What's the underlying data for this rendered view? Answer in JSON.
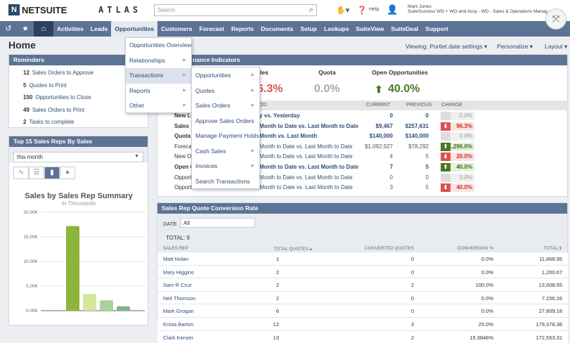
{
  "header": {
    "brand": "NETSUITE",
    "atlas": "ATLAS",
    "search_placeholder": "Search",
    "help": "Help",
    "user_name": "Mark Jones",
    "user_role": "SuiteSuccess WD + WO and Assy - WD - Sales & Operations Manag"
  },
  "nav": [
    "Activities",
    "Leads",
    "Opportunities",
    "Customers",
    "Forecast",
    "Reports",
    "Documents",
    "Setup",
    "Lookups",
    "SuiteView",
    "SuiteDeal",
    "Support"
  ],
  "page": {
    "title": "Home",
    "viewing": "Viewing: Portlet date settings",
    "personalize": "Personalize",
    "layout": "Layout"
  },
  "reminders": {
    "title": "Reminders",
    "items": [
      {
        "count": "12",
        "label": "Sales Orders to Approve"
      },
      {
        "count": "5",
        "label": "Quotes to Print"
      },
      {
        "count": "150",
        "label": "Opportunities to Close"
      },
      {
        "count": "49",
        "label": "Sales Orders to Print"
      },
      {
        "count": "2",
        "label": "Tasks to complete"
      }
    ]
  },
  "top15": {
    "title": "Top 15 Sales Reps By Sales",
    "period": "this month"
  },
  "chart_data": {
    "type": "bar",
    "title": "Sales by Sales Rep Summary",
    "subtitle": "In Thousands",
    "ylim": [
      0,
      20000
    ],
    "yticks": [
      "0.00K",
      "5.00K",
      "10.00K",
      "15.00K",
      "20.00K"
    ],
    "values": [
      17200,
      3400,
      2100,
      900
    ],
    "colors": [
      "#8db53c",
      "#d3e69a",
      "#a9d19b",
      "#7fb095"
    ]
  },
  "menu": {
    "items": [
      "Opportunities Overview",
      "Relationships",
      "Transactions",
      "Reports",
      "Other"
    ],
    "sub": [
      "Opportunities",
      "Quotes",
      "Sales Orders",
      "Approve Sales Orders",
      "Manage Payment Holds",
      "Cash Sales",
      "Invoices",
      "Search Transactions"
    ]
  },
  "kpi": {
    "title_fragment": "nance Indicators",
    "labels": [
      "les",
      "Quota",
      "Open Opportunities"
    ],
    "values": [
      "6.3%",
      "0.0%",
      "40.0%"
    ],
    "headers": [
      "OD",
      "CURRENT",
      "PREVIOUS",
      "CHANGE"
    ],
    "rows": [
      {
        "ind": "New Le",
        "period": "y vs. Yesterday",
        "cur": "0",
        "prev": "0",
        "chg": "0.0%",
        "dir": "flat",
        "bold": true
      },
      {
        "ind": "Sales",
        "period": "Month to Date vs. Last Month to Date",
        "cur": "$9,467",
        "prev": "$257,631",
        "chg": "96.3%",
        "dir": "down",
        "bold": true
      },
      {
        "ind": "Quota",
        "period": "Month vs. Last Month",
        "cur": "$140,000",
        "prev": "$140,000",
        "chg": "0.0%",
        "dir": "flat",
        "bold": true
      },
      {
        "ind": "Foreca",
        "period": "Month to Date vs. Last Month to Date",
        "cur": "$1,092,927",
        "prev": "$78,292",
        "chg": "1,296.0%",
        "dir": "up",
        "bold": false
      },
      {
        "ind": "New Op",
        "period": "Month to Date vs. Last Month to Date",
        "cur": "4",
        "prev": "5",
        "chg": "20.0%",
        "dir": "down",
        "bold": false
      },
      {
        "ind": "Open C",
        "period": "Month to Date vs. Last Month to Date",
        "cur": "7",
        "prev": "5",
        "chg": "40.0%",
        "dir": "up",
        "bold": true
      },
      {
        "ind": "Opport",
        "period": "Month to Date vs. Last Month to Date",
        "cur": "0",
        "prev": "0",
        "chg": "0.0%",
        "dir": "flat",
        "bold": false
      },
      {
        "ind": "Opportunities Won",
        "period": "This Month to Date vs. Last Month to Date",
        "cur": "3",
        "prev": "5",
        "chg": "40.0%",
        "dir": "down",
        "bold": false
      }
    ]
  },
  "conv": {
    "title": "Sales Rep Quote Conversion Rate",
    "date_label": "DATE",
    "date_value": "All",
    "total": "TOTAL: 9",
    "headers": [
      "SALES REP",
      "TOTAL QUOTES ▴",
      "CONVERTED QUOTES",
      "CONVERSION %",
      "TOTAL $"
    ],
    "rows": [
      [
        "Matt Nolan",
        "1",
        "0",
        "0.0%",
        "11,868.95"
      ],
      [
        "Mary Higgins",
        "2",
        "0",
        "0.0%",
        "1,200.67"
      ],
      [
        "Sam R Cruz",
        "2",
        "2",
        "100.0%",
        "13,608.55"
      ],
      [
        "Neil Thomson",
        "2",
        "0",
        "0.0%",
        "7,156.26"
      ],
      [
        "Mark Grogan",
        "6",
        "0",
        "0.0%",
        "27,809.18"
      ],
      [
        "Krista Barton",
        "12",
        "3",
        "25.0%",
        "179,378.38"
      ],
      [
        "Clark Kenzer",
        "13",
        "2",
        "15.3846%",
        "172,553.31"
      ]
    ]
  }
}
